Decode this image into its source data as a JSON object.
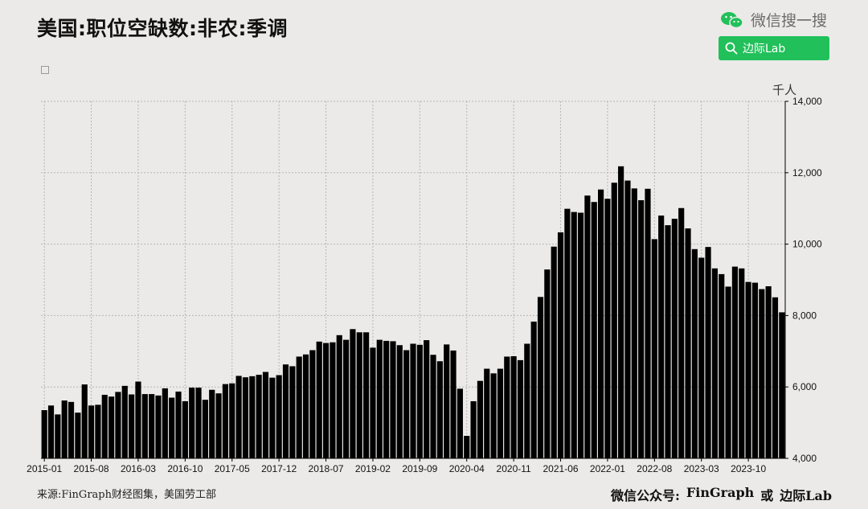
{
  "header": {
    "title": "美国:职位空缺数:非农:季调",
    "wechat_label": "微信搜一搜",
    "search_label": "边际Lab"
  },
  "footer": {
    "source": "来源:FinGraph财经图集，美国劳工部",
    "wechat_public": "微信公众号:",
    "name1": "FinGraph",
    "or": "或",
    "name2": "边际Lab"
  },
  "colors": {
    "background": "#ebeae8",
    "bar": "#000000",
    "grid": "#b5b5b5",
    "search_button": "#21c05a"
  },
  "chart_data": {
    "type": "bar",
    "unit": "千人",
    "ylim": [
      4000,
      14000
    ],
    "yticks": [
      "4,000",
      "6,000",
      "8,000",
      "10,000",
      "12,000",
      "14,000"
    ],
    "xtick_labels": [
      "2015-01",
      "2015-08",
      "2016-03",
      "2016-10",
      "2017-05",
      "2017-12",
      "2018-07",
      "2019-02",
      "2019-09",
      "2020-04",
      "2020-11",
      "2021-06",
      "2022-01",
      "2022-08",
      "2023-03",
      "2023-10"
    ],
    "start": "2015-01",
    "grid": true,
    "values": [
      5350,
      5480,
      5230,
      5620,
      5580,
      5280,
      6070,
      5480,
      5500,
      5780,
      5730,
      5860,
      6030,
      5790,
      6150,
      5800,
      5800,
      5760,
      5960,
      5700,
      5870,
      5600,
      5980,
      5980,
      5640,
      5920,
      5820,
      6080,
      6100,
      6310,
      6270,
      6300,
      6340,
      6420,
      6260,
      6330,
      6630,
      6580,
      6850,
      6910,
      7030,
      7270,
      7230,
      7250,
      7450,
      7320,
      7620,
      7530,
      7530,
      7100,
      7320,
      7290,
      7280,
      7170,
      7030,
      7210,
      7180,
      7310,
      6900,
      6720,
      7190,
      7020,
      5950,
      4630,
      5600,
      6170,
      6510,
      6380,
      6510,
      6850,
      6860,
      6750,
      7210,
      7830,
      8520,
      9290,
      9930,
      10330,
      10990,
      10900,
      10880,
      11360,
      11180,
      11530,
      11270,
      11720,
      12180,
      11780,
      11560,
      11230,
      11550,
      10140,
      10800,
      10530,
      10710,
      11010,
      10440,
      9860,
      9620,
      9920,
      9320,
      9160,
      8810,
      9370,
      9320,
      8940,
      8920,
      8740,
      8820,
      8510,
      8090
    ]
  }
}
